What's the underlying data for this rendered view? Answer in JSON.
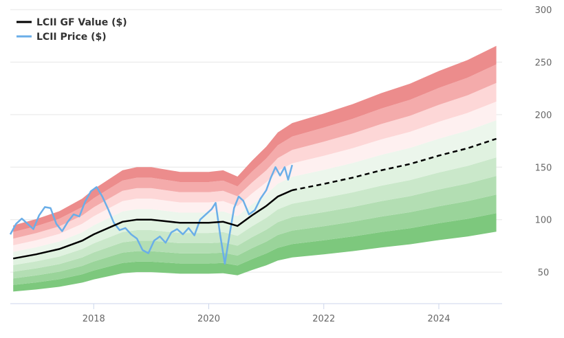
{
  "chart_data": {
    "type": "area",
    "title": "",
    "xlabel": "",
    "ylabel": "",
    "xlim": [
      2016.55,
      2025.1
    ],
    "ylim": [
      20,
      300
    ],
    "grid": true,
    "legend_placement": "top-left",
    "x_ticks": [
      2018,
      2020,
      2022,
      2024
    ],
    "x_tick_labels": [
      "2018",
      "2020",
      "2022",
      "2024"
    ],
    "y_ticks": [
      50,
      100,
      150,
      200,
      250,
      300
    ],
    "y_tick_labels": [
      "50",
      "100",
      "150",
      "200",
      "250",
      "300"
    ],
    "gf_value_series": {
      "name": "LCII GF Value ($)",
      "color": "#000000",
      "x": [
        2016.6,
        2017.0,
        2017.4,
        2017.8,
        2018.0,
        2018.5,
        2018.75,
        2019.0,
        2019.5,
        2020.0,
        2020.25,
        2020.5,
        2020.75,
        2021.0,
        2021.2,
        2021.45
      ],
      "y": [
        63,
        67,
        72,
        80,
        86,
        98,
        100,
        100,
        97,
        97,
        98,
        94,
        104,
        113,
        122,
        128
      ]
    },
    "gf_value_projection": {
      "x": [
        2021.45,
        2022.0,
        2022.5,
        2023.0,
        2023.5,
        2024.0,
        2024.5,
        2025.0
      ],
      "y": [
        128,
        134,
        140,
        147,
        153,
        161,
        168,
        177
      ],
      "style": "dashed"
    },
    "band_multipliers": [
      0.5,
      0.6,
      0.7,
      0.8,
      0.9,
      1.0,
      1.1,
      1.2,
      1.3,
      1.4,
      1.5
    ],
    "band_colors": [
      "#7dc87d",
      "#9ad49a",
      "#b3deb3",
      "#cae8ca",
      "#e0f2e0",
      "#ecf6ec",
      "#fef0f0",
      "#fdd7d7",
      "#f4abab",
      "#ec8c8c",
      "#ed7373"
    ],
    "price_series": {
      "name": "LCII Price ($)",
      "color": "#6aaee8",
      "x": [
        2016.55,
        2016.65,
        2016.75,
        2016.85,
        2016.95,
        2017.05,
        2017.15,
        2017.25,
        2017.35,
        2017.45,
        2017.55,
        2017.65,
        2017.75,
        2017.85,
        2017.95,
        2018.05,
        2018.15,
        2018.25,
        2018.35,
        2018.45,
        2018.55,
        2018.65,
        2018.75,
        2018.85,
        2018.95,
        2019.05,
        2019.15,
        2019.25,
        2019.35,
        2019.45,
        2019.55,
        2019.65,
        2019.75,
        2019.85,
        2019.95,
        2020.05,
        2020.12,
        2020.2,
        2020.28,
        2020.36,
        2020.44,
        2020.52,
        2020.6,
        2020.7,
        2020.8,
        2020.9,
        2021.0,
        2021.08,
        2021.16,
        2021.24,
        2021.32,
        2021.38,
        2021.45
      ],
      "y": [
        86,
        96,
        101,
        96,
        91,
        104,
        112,
        111,
        96,
        89,
        98,
        105,
        103,
        117,
        127,
        131,
        122,
        110,
        97,
        90,
        92,
        86,
        82,
        71,
        68,
        80,
        84,
        78,
        88,
        91,
        86,
        92,
        85,
        100,
        105,
        110,
        116,
        85,
        58,
        85,
        111,
        122,
        118,
        105,
        109,
        120,
        128,
        140,
        150,
        142,
        150,
        138,
        152
      ]
    }
  },
  "legend": [
    {
      "label": "LCII GF Value ($)",
      "color": "#000000"
    },
    {
      "label": "LCII Price ($)",
      "color": "#6aaee8"
    }
  ]
}
